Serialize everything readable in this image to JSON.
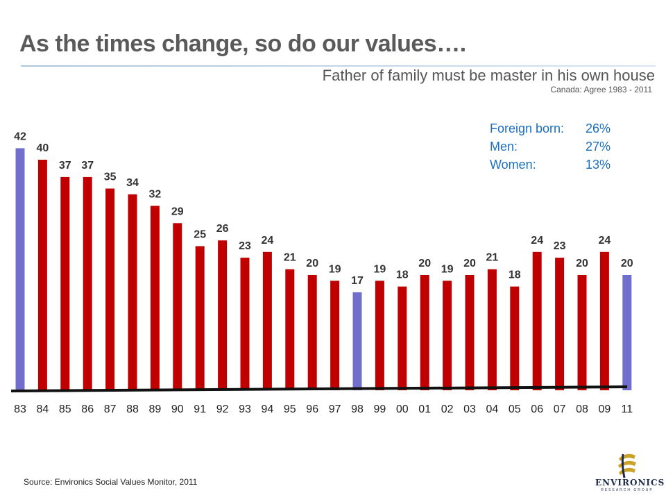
{
  "header": {
    "title": "As the times change, so do our values….",
    "subtitle": "Father of family must be master in his own house",
    "subsubtitle": "Canada: Agree 1983 - 2011"
  },
  "stats": [
    {
      "label": "Foreign born:",
      "value": "26%"
    },
    {
      "label": "Men:",
      "value": "27%"
    },
    {
      "label": "Women:",
      "value": "13%"
    }
  ],
  "source": "Source: Environics  Social Values Monitor, 2011",
  "logo": {
    "name": "ENVIRONICS",
    "tagline": "RESEARCH GROUP"
  },
  "colors": {
    "red": "#c00000",
    "blue": "#7070cc",
    "title": "#5a5a5a",
    "stats": "#1a6fc1"
  },
  "chart_data": {
    "type": "bar",
    "categories": [
      "83",
      "84",
      "85",
      "86",
      "87",
      "88",
      "89",
      "90",
      "91",
      "92",
      "93",
      "94",
      "95",
      "96",
      "97",
      "98",
      "99",
      "00",
      "01",
      "02",
      "03",
      "04",
      "05",
      "06",
      "07",
      "08",
      "09",
      "11"
    ],
    "values": [
      42,
      40,
      37,
      37,
      35,
      34,
      32,
      29,
      25,
      26,
      23,
      24,
      21,
      20,
      19,
      17,
      19,
      18,
      20,
      19,
      20,
      21,
      18,
      24,
      23,
      20,
      24,
      20
    ],
    "highlighted": [
      "83",
      "98",
      "11"
    ],
    "ylim": [
      0,
      42
    ],
    "grid": false,
    "legend": "none"
  }
}
